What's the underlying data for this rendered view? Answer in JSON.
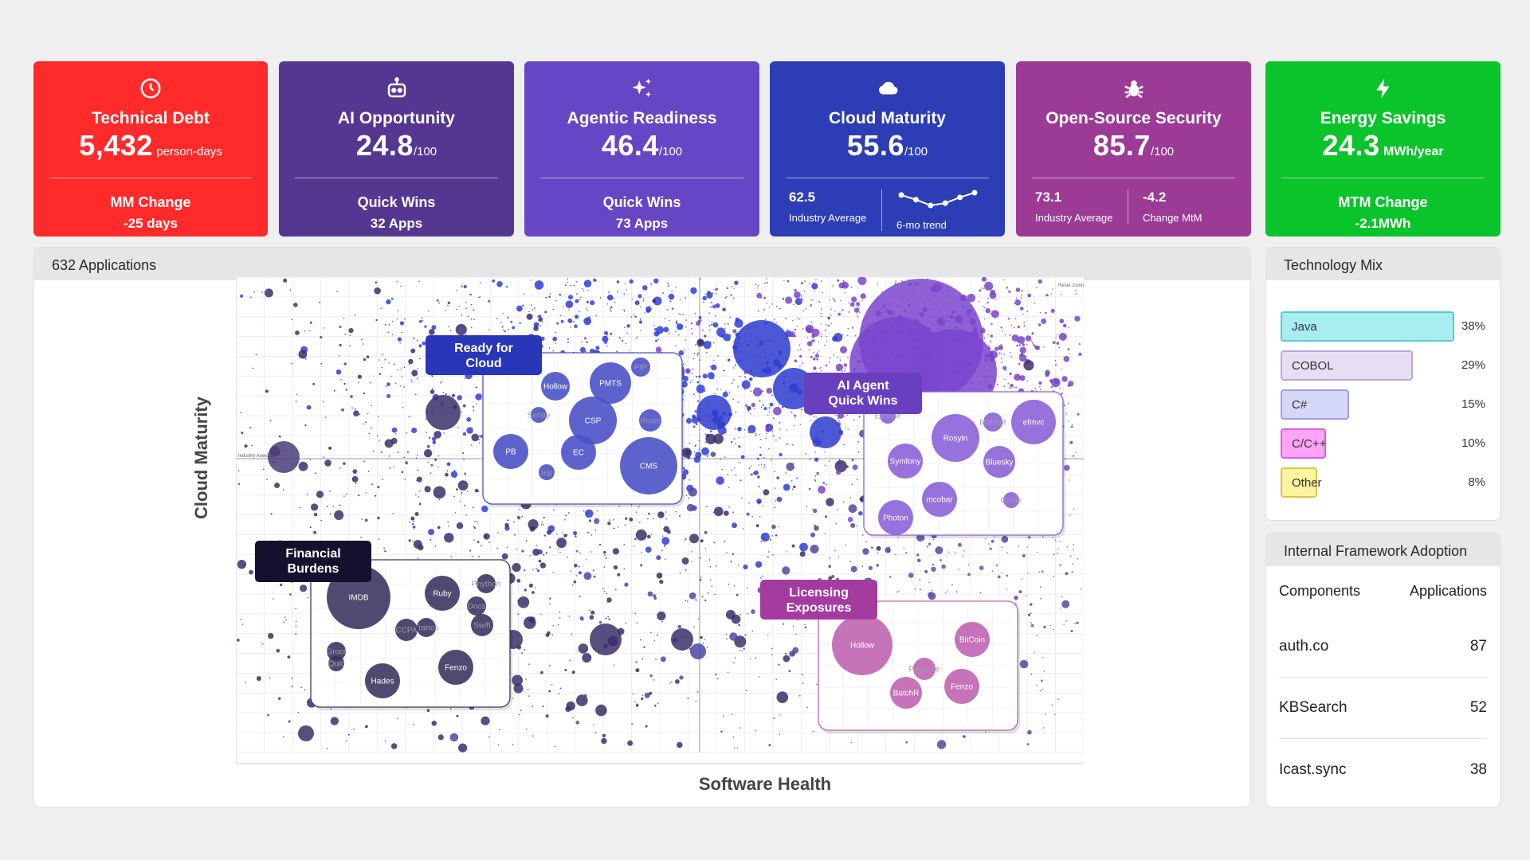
{
  "kpis": [
    {
      "title": "Technical Debt",
      "value": "5,432",
      "unit": "person-days",
      "sub_label": "MM Change",
      "sub_value": "-25 days",
      "icon": "clock-icon",
      "color": "#ff2a2a"
    },
    {
      "title": "AI Opportunity",
      "value": "24.8",
      "unit": "/100",
      "sub_label": "Quick Wins",
      "sub_value": "32 Apps",
      "icon": "robot-icon",
      "color": "#553792"
    },
    {
      "title": "Agentic Readiness",
      "value": "46.4",
      "unit": "/100",
      "sub_label": "Quick Wins",
      "sub_value": "73 Apps",
      "icon": "sparkles-icon",
      "color": "#6646c4"
    },
    {
      "title": "Cloud Maturity",
      "value": "55.6",
      "unit": "/100",
      "left_value": "62.5",
      "left_label": "Industry Average",
      "right_label": "6-mo trend",
      "icon": "cloud-icon",
      "color": "#2c3db5",
      "trend": [
        58,
        54,
        49,
        51,
        56,
        60
      ]
    },
    {
      "title": "Open-Source Security",
      "value": "85.7",
      "unit": "/100",
      "left_value": "73.1",
      "left_label": "Industry Average",
      "right_value": "-4.2",
      "right_label": "Change MtM",
      "icon": "bug-icon",
      "color": "#9b3b96"
    },
    {
      "title": "Energy Savings",
      "value": "24.3",
      "unit": "MWh/year",
      "sub_label": "MTM Change",
      "sub_value": "-2.1MWh",
      "icon": "lightning-icon",
      "color": "#0ac42b"
    }
  ],
  "scatter_panel": {
    "header": "632 Applications",
    "x_label": "Software Health",
    "y_label": "Cloud Maturity",
    "reference_label": "Industry Average",
    "reset_label": "Reset zoom"
  },
  "chart_data": {
    "type": "scatter",
    "xlabel": "Software Health",
    "ylabel": "Cloud Maturity",
    "groups": [
      {
        "name": "Ready for Cloud",
        "color": "#4a52c6",
        "points": [
          "Hollow",
          "PMTS",
          "PtP",
          "Sentry",
          "CSP",
          "Rosin",
          "PB",
          "EC",
          "Iep",
          "CMS"
        ]
      },
      {
        "name": "AI Agent Quick Wins",
        "color": "#8c62d8",
        "points": [
          "Echline",
          "Mabout",
          "efmvc",
          "Rosyln",
          "Symfony",
          "Bluesky",
          "mcobar",
          "Genie",
          "Photon"
        ]
      },
      {
        "name": "Financial Burdens",
        "color": "#3d3560",
        "points": [
          "IMDB",
          "Ruby",
          "Phython",
          "Docs",
          "Swift",
          "Tranos",
          "CCPA",
          "Groot",
          "Quic",
          "Hades",
          "Fenzo"
        ]
      },
      {
        "name": "Licensing Exposures",
        "color": "#c064b2",
        "points": [
          "Hollow",
          "BitCoin",
          "PetStore",
          "Fenzo",
          "BatchR"
        ]
      }
    ]
  },
  "tech_mix": {
    "header": "Technology Mix",
    "items": [
      {
        "label": "Java",
        "pct": "38%",
        "share": 0.38,
        "fill": "#a8eef0",
        "border": "#58c9d2"
      },
      {
        "label": "COBOL",
        "pct": "29%",
        "share": 0.29,
        "fill": "#e6dff4",
        "border": "#b8a8dc"
      },
      {
        "label": "C#",
        "pct": "15%",
        "share": 0.15,
        "fill": "#d6d8fa",
        "border": "#9aa0ec"
      },
      {
        "label": "C/C++",
        "pct": "10%",
        "share": 0.1,
        "fill": "#fda4f6",
        "border": "#e05ad8"
      },
      {
        "label": "Other",
        "pct": "8%",
        "share": 0.08,
        "fill": "#fbf39f",
        "border": "#d7c64a"
      }
    ]
  },
  "frameworks": {
    "header": "Internal Framework Adoption",
    "col_component": "Components",
    "col_apps": "Applications",
    "rows": [
      {
        "name": "auth.co",
        "apps": "87"
      },
      {
        "name": "KBSearch",
        "apps": "52"
      },
      {
        "name": "Icast.sync",
        "apps": "38"
      }
    ]
  }
}
